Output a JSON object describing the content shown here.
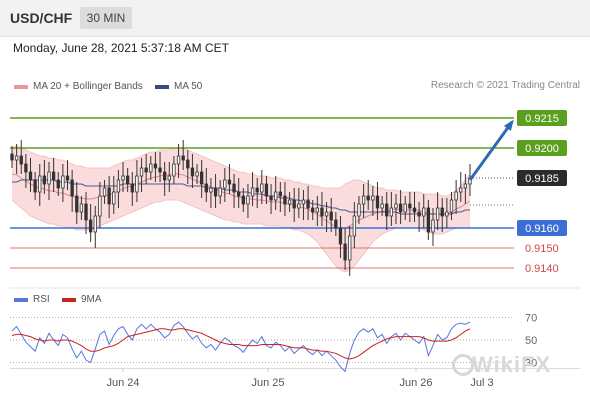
{
  "header": {
    "symbol": "USD/CHF",
    "timeframe": "30 MIN",
    "datetime": "Monday, June 28, 2021 5:37:18 AM CET"
  },
  "legend": {
    "ma20_label": "MA 20 + Bollinger Bands",
    "ma50_label": "MA 50",
    "credit": "Research © 2021 Trading Central",
    "rsi_label": "RSI",
    "ma9_label": "9MA"
  },
  "watermark": "WikiFX",
  "colors": {
    "resistance_green": "#5aa01e",
    "support_blue": "#3b6fd6",
    "target_red": "#d24646",
    "arrow_blue": "#2f6bb0",
    "bollinger_fill": "#fbdcdc",
    "candle_body": "#333333",
    "ma20": "#e08a8a",
    "ma50": "#4a5a8a",
    "rsi_line": "#5577dd",
    "rsi_ma": "#cc2222"
  },
  "chart_data": [
    {
      "type": "candlestick",
      "title": "USD/CHF 30 MIN",
      "ylim": [
        0.9133,
        0.9226
      ],
      "x_ticks": [
        "Jun 24",
        "Jun 25",
        "Jun 26",
        "Jul 3"
      ],
      "levels": [
        {
          "price": "0.9215",
          "value": 0.9215,
          "role": "resistance",
          "color": "#5aa01e"
        },
        {
          "price": "0.9200",
          "value": 0.92,
          "role": "resistance",
          "color": "#5aa01e"
        },
        {
          "price": "0.9185",
          "value": 0.9185,
          "role": "current",
          "color": "#222222"
        },
        {
          "price": "0.9160",
          "value": 0.916,
          "role": "pivot",
          "color": "#3b6fd6"
        },
        {
          "price": "0.9150",
          "value": 0.915,
          "role": "support",
          "color": "#d24646"
        },
        {
          "price": "0.9140",
          "value": 0.914,
          "role": "support",
          "color": "#d24646"
        }
      ],
      "close": [
        0.9194,
        0.9196,
        0.9192,
        0.9188,
        0.9184,
        0.9178,
        0.9186,
        0.9182,
        0.9188,
        0.9184,
        0.918,
        0.9186,
        0.9184,
        0.9176,
        0.9168,
        0.9172,
        0.9164,
        0.9158,
        0.9166,
        0.9176,
        0.918,
        0.9172,
        0.9178,
        0.9184,
        0.9186,
        0.9182,
        0.9178,
        0.9186,
        0.919,
        0.9188,
        0.9192,
        0.919,
        0.9188,
        0.9184,
        0.9186,
        0.9192,
        0.9196,
        0.9194,
        0.919,
        0.9186,
        0.9188,
        0.9182,
        0.9178,
        0.918,
        0.9176,
        0.918,
        0.9184,
        0.9182,
        0.9178,
        0.9176,
        0.9172,
        0.9176,
        0.918,
        0.9178,
        0.9182,
        0.9176,
        0.9174,
        0.9178,
        0.9176,
        0.9172,
        0.9174,
        0.917,
        0.9172,
        0.9174,
        0.917,
        0.9168,
        0.917,
        0.9166,
        0.9168,
        0.9164,
        0.916,
        0.9152,
        0.9144,
        0.9156,
        0.9166,
        0.9172,
        0.9176,
        0.9174,
        0.9176,
        0.917,
        0.9172,
        0.9166,
        0.917,
        0.9172,
        0.9168,
        0.9172,
        0.917,
        0.9168,
        0.9166,
        0.917,
        0.9158,
        0.9164,
        0.917,
        0.9166,
        0.9168,
        0.9174,
        0.9178,
        0.918,
        0.9182,
        0.9185
      ],
      "bollinger_upper": [
        0.92,
        0.9201,
        0.92,
        0.9199,
        0.9198,
        0.9197,
        0.9196,
        0.9196,
        0.9195,
        0.9195,
        0.9194,
        0.9194,
        0.9193,
        0.9192,
        0.9191,
        0.9191,
        0.919,
        0.919,
        0.919,
        0.919,
        0.919,
        0.919,
        0.9191,
        0.9192,
        0.9193,
        0.9194,
        0.9194,
        0.9195,
        0.9196,
        0.9197,
        0.9198,
        0.9198,
        0.9199,
        0.9199,
        0.9199,
        0.92,
        0.92,
        0.92,
        0.9199,
        0.9198,
        0.9197,
        0.9196,
        0.9195,
        0.9194,
        0.9193,
        0.9192,
        0.9191,
        0.919,
        0.9189,
        0.9188,
        0.9188,
        0.9187,
        0.9187,
        0.9186,
        0.9186,
        0.9186,
        0.9185,
        0.9185,
        0.9185,
        0.9184,
        0.9184,
        0.9183,
        0.9183,
        0.9182,
        0.9182,
        0.9181,
        0.9181,
        0.918,
        0.918,
        0.918,
        0.918,
        0.918,
        0.9182,
        0.9183,
        0.9184,
        0.9184,
        0.9183,
        0.9182,
        0.9181,
        0.918,
        0.918,
        0.9179,
        0.9179,
        0.9179,
        0.9178,
        0.9178,
        0.9178,
        0.9178,
        0.9178,
        0.9177,
        0.9177,
        0.9177,
        0.9177,
        0.9176,
        0.9176,
        0.9177,
        0.9179,
        0.9181,
        0.9184,
        0.9187
      ],
      "bollinger_lower": [
        0.9174,
        0.9172,
        0.917,
        0.9168,
        0.9166,
        0.9165,
        0.9164,
        0.9163,
        0.9162,
        0.9162,
        0.9161,
        0.9161,
        0.916,
        0.916,
        0.9159,
        0.9159,
        0.9159,
        0.9159,
        0.916,
        0.9161,
        0.9162,
        0.9163,
        0.9164,
        0.9165,
        0.9166,
        0.9167,
        0.9168,
        0.9169,
        0.917,
        0.9171,
        0.9172,
        0.9173,
        0.9173,
        0.9174,
        0.9174,
        0.9174,
        0.9174,
        0.9173,
        0.9172,
        0.9171,
        0.917,
        0.9169,
        0.9168,
        0.9167,
        0.9166,
        0.9165,
        0.9164,
        0.9164,
        0.9163,
        0.9163,
        0.9162,
        0.9162,
        0.9162,
        0.9162,
        0.9162,
        0.9161,
        0.9161,
        0.9161,
        0.9161,
        0.916,
        0.916,
        0.9159,
        0.9159,
        0.9158,
        0.9157,
        0.9155,
        0.9153,
        0.915,
        0.9147,
        0.9144,
        0.9141,
        0.9139,
        0.9138,
        0.9139,
        0.9141,
        0.9144,
        0.9147,
        0.915,
        0.9153,
        0.9155,
        0.9157,
        0.9158,
        0.9159,
        0.916,
        0.916,
        0.916,
        0.916,
        0.916,
        0.916,
        0.9159,
        0.9158,
        0.9157,
        0.9157,
        0.9157,
        0.9158,
        0.9159,
        0.916,
        0.916,
        0.916,
        0.916
      ],
      "ma50": [
        0.9183,
        0.9183,
        0.9184,
        0.9184,
        0.9184,
        0.9184,
        0.9184,
        0.9184,
        0.9184,
        0.9184,
        0.9183,
        0.9183,
        0.9183,
        0.9182,
        0.9182,
        0.9182,
        0.9181,
        0.9181,
        0.9181,
        0.9181,
        0.9181,
        0.9181,
        0.9181,
        0.9181,
        0.9182,
        0.9182,
        0.9182,
        0.9182,
        0.9182,
        0.9182,
        0.9182,
        0.9182,
        0.9182,
        0.9182,
        0.9182,
        0.9182,
        0.9182,
        0.9182,
        0.9181,
        0.9181,
        0.9181,
        0.9181,
        0.918,
        0.918,
        0.918,
        0.918,
        0.9179,
        0.9179,
        0.9179,
        0.9178,
        0.9178,
        0.9178,
        0.9177,
        0.9177,
        0.9177,
        0.9176,
        0.9176,
        0.9176,
        0.9175,
        0.9175,
        0.9175,
        0.9174,
        0.9174,
        0.9173,
        0.9173,
        0.9172,
        0.9172,
        0.9171,
        0.9171,
        0.917,
        0.917,
        0.9169,
        0.9169,
        0.9168,
        0.9168,
        0.9168,
        0.9168,
        0.9168,
        0.9168,
        0.9168,
        0.9168,
        0.9168,
        0.9168,
        0.9168,
        0.9167,
        0.9167,
        0.9167,
        0.9167,
        0.9167,
        0.9167,
        0.9167,
        0.9167,
        0.9167,
        0.9167,
        0.9167,
        0.9167,
        0.9168,
        0.9168,
        0.9169,
        0.9169
      ]
    },
    {
      "type": "line",
      "title": "RSI",
      "ylim": [
        25,
        75
      ],
      "y_ticks": [
        "70",
        "50",
        "30"
      ],
      "series": [
        {
          "name": "RSI",
          "values": [
            58,
            62,
            55,
            48,
            44,
            40,
            52,
            47,
            56,
            50,
            45,
            55,
            52,
            42,
            34,
            40,
            32,
            30,
            42,
            55,
            58,
            46,
            54,
            60,
            62,
            55,
            50,
            60,
            64,
            60,
            64,
            60,
            57,
            52,
            55,
            63,
            66,
            62,
            56,
            51,
            54,
            47,
            43,
            46,
            41,
            47,
            52,
            49,
            45,
            43,
            39,
            45,
            50,
            47,
            53,
            45,
            43,
            48,
            45,
            40,
            44,
            38,
            42,
            45,
            40,
            37,
            41,
            36,
            40,
            36,
            32,
            26,
            22,
            38,
            50,
            57,
            60,
            57,
            60,
            52,
            55,
            47,
            53,
            56,
            50,
            56,
            53,
            50,
            47,
            53,
            36,
            45,
            55,
            50,
            52,
            60,
            64,
            65,
            64,
            66
          ]
        },
        {
          "name": "9MA",
          "values": [
            54,
            55,
            55,
            54,
            53,
            51,
            50,
            49,
            50,
            50,
            49,
            50,
            50,
            49,
            47,
            45,
            42,
            40,
            40,
            41,
            43,
            44,
            45,
            47,
            50,
            53,
            54,
            55,
            56,
            57,
            58,
            59,
            60,
            60,
            59,
            59,
            60,
            60,
            59,
            58,
            57,
            56,
            54,
            52,
            50,
            48,
            47,
            46,
            46,
            46,
            45,
            45,
            45,
            45,
            46,
            46,
            46,
            46,
            46,
            45,
            44,
            43,
            43,
            43,
            42,
            41,
            41,
            40,
            40,
            39,
            38,
            36,
            34,
            33,
            34,
            36,
            39,
            42,
            45,
            47,
            49,
            51,
            52,
            53,
            53,
            53,
            53,
            53,
            53,
            52,
            50,
            49,
            49,
            49,
            49,
            50,
            52,
            55,
            58,
            60
          ]
        }
      ]
    }
  ]
}
